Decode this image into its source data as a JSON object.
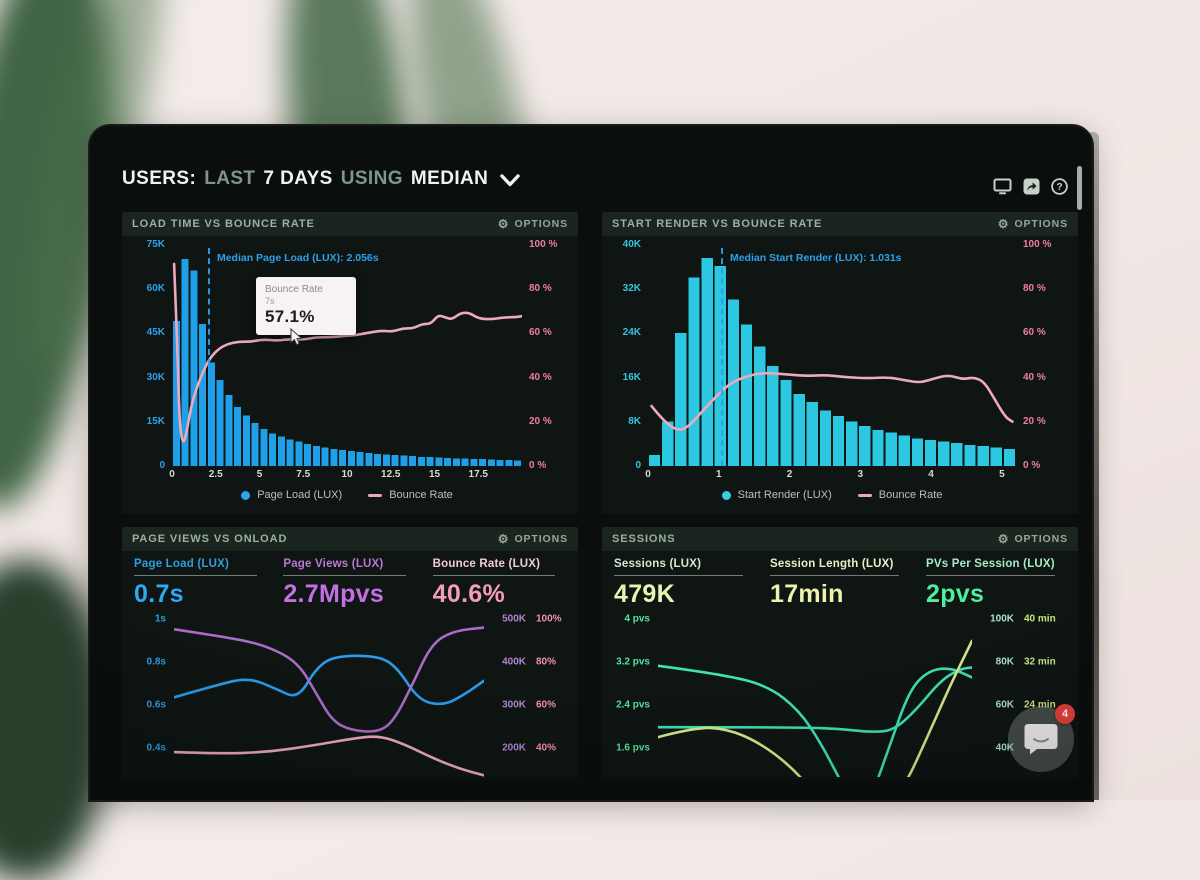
{
  "header": {
    "title_parts": [
      {
        "text": "USERS:",
        "emph": true
      },
      {
        "text": "LAST",
        "emph": false
      },
      {
        "text": "7 DAYS",
        "emph": true
      },
      {
        "text": "USING",
        "emph": false
      },
      {
        "text": "MEDIAN",
        "emph": true
      }
    ],
    "icons": [
      "display-icon",
      "share-icon",
      "help-icon"
    ]
  },
  "labels": {
    "options": "OPTIONS"
  },
  "chat_widget": {
    "badge": "4",
    "icon": "chat-bubble-icon"
  },
  "chart_data": [
    {
      "type": "bar+line",
      "title": "LOAD TIME VS BOUNCE RATE",
      "x_range": [
        0,
        20
      ],
      "x_ticks": [
        {
          "label": "0",
          "v": 0
        },
        {
          "label": "2.5",
          "v": 2.5
        },
        {
          "label": "5",
          "v": 5
        },
        {
          "label": "7.5",
          "v": 7.5
        },
        {
          "label": "10",
          "v": 10
        },
        {
          "label": "12.5",
          "v": 12.5
        },
        {
          "label": "15",
          "v": 15
        },
        {
          "label": "17.5",
          "v": 17.5
        }
      ],
      "y_left": {
        "labels": [
          "75K",
          "60K",
          "45K",
          "30K",
          "15K",
          "0"
        ],
        "max": 75,
        "color": "#2f9fe8"
      },
      "y_right": {
        "labels": [
          "100 %",
          "80 %",
          "60 %",
          "40 %",
          "20 %",
          "0 %"
        ],
        "max": 100,
        "color": "#f27e9b"
      },
      "bars": {
        "name": "Page Load (LUX)",
        "color": "#1e9fe8",
        "values": [
          49,
          70,
          66,
          48,
          35,
          29,
          24,
          20,
          17,
          14.5,
          12.5,
          11,
          10,
          9,
          8.2,
          7.5,
          6.8,
          6.3,
          5.8,
          5.4,
          5,
          4.7,
          4.4,
          4.1,
          3.9,
          3.7,
          3.5,
          3.3,
          3.1,
          3,
          2.8,
          2.7,
          2.6,
          2.5,
          2.4,
          2.3,
          2.2,
          2.1,
          2,
          1.9
        ]
      },
      "line": {
        "name": "Bounce Rate",
        "color": "#efa9bd",
        "points": [
          [
            0.12,
            91
          ],
          [
            0.3,
            55
          ],
          [
            0.42,
            22
          ],
          [
            0.55,
            12
          ],
          [
            0.7,
            10.5
          ],
          [
            0.9,
            18
          ],
          [
            1.1,
            27
          ],
          [
            1.4,
            35
          ],
          [
            1.8,
            43
          ],
          [
            2.2,
            49
          ],
          [
            2.7,
            53
          ],
          [
            3.2,
            55
          ],
          [
            3.8,
            56
          ],
          [
            4.5,
            56
          ],
          [
            5.2,
            57
          ],
          [
            6,
            56.5
          ],
          [
            6.6,
            57
          ],
          [
            7,
            57.1
          ],
          [
            7.6,
            57
          ],
          [
            8.2,
            58
          ],
          [
            9,
            58
          ],
          [
            9.8,
            58.5
          ],
          [
            10.5,
            59
          ],
          [
            11.2,
            60
          ],
          [
            12,
            61
          ],
          [
            12.6,
            60.5
          ],
          [
            13.2,
            62
          ],
          [
            13.8,
            62
          ],
          [
            14.3,
            64
          ],
          [
            14.8,
            64
          ],
          [
            15.2,
            68
          ],
          [
            15.6,
            67
          ],
          [
            16,
            66
          ],
          [
            16.5,
            69
          ],
          [
            17,
            69
          ],
          [
            17.5,
            66.5
          ],
          [
            18.2,
            66
          ],
          [
            19,
            67
          ],
          [
            19.6,
            67
          ],
          [
            20,
            67.5
          ]
        ]
      },
      "median": {
        "label": "Median Page Load (LUX): 2.056s",
        "value": 2.056,
        "color": "#2e9fe8"
      },
      "tooltip": {
        "title": "Bounce Rate",
        "subtitle": "7s",
        "value": "57.1%"
      },
      "legend": [
        {
          "label": "Page Load (LUX)",
          "marker": "dot",
          "color": "#2aa4ec"
        },
        {
          "label": "Bounce Rate",
          "marker": "dash",
          "color": "#f0a6ba"
        }
      ]
    },
    {
      "type": "bar+line",
      "title": "START RENDER VS BOUNCE RATE",
      "x_range": [
        0,
        5.2
      ],
      "x_ticks": [
        {
          "label": "0",
          "v": 0
        },
        {
          "label": "1",
          "v": 1
        },
        {
          "label": "2",
          "v": 2
        },
        {
          "label": "3",
          "v": 3
        },
        {
          "label": "4",
          "v": 4
        },
        {
          "label": "5",
          "v": 5
        }
      ],
      "y_left": {
        "labels": [
          "40K",
          "32K",
          "24K",
          "16K",
          "8K",
          "0"
        ],
        "max": 40,
        "color": "#35c6de"
      },
      "y_right": {
        "labels": [
          "100 %",
          "80 %",
          "60 %",
          "40 %",
          "20 %",
          "0 %"
        ],
        "max": 100,
        "color": "#f27e9b"
      },
      "bars": {
        "name": "Start Render (LUX)",
        "color": "#2cc7e0",
        "values": [
          2,
          8,
          24,
          34,
          37.5,
          36,
          30,
          25.5,
          21.5,
          18,
          15.5,
          13,
          11.5,
          10,
          9,
          8,
          7.2,
          6.5,
          6,
          5.5,
          5,
          4.7,
          4.4,
          4.1,
          3.8,
          3.6,
          3.3,
          3.1
        ]
      },
      "line": {
        "name": "Bounce Rate",
        "color": "#efa9bd",
        "points": [
          [
            0.05,
            27
          ],
          [
            0.2,
            21
          ],
          [
            0.4,
            16
          ],
          [
            0.55,
            17
          ],
          [
            0.75,
            24
          ],
          [
            0.95,
            31
          ],
          [
            1.15,
            37
          ],
          [
            1.35,
            40
          ],
          [
            1.6,
            42
          ],
          [
            1.9,
            41.5
          ],
          [
            2.2,
            40.5
          ],
          [
            2.5,
            41
          ],
          [
            2.8,
            40
          ],
          [
            3.1,
            39.5
          ],
          [
            3.4,
            40
          ],
          [
            3.65,
            38.5
          ],
          [
            3.85,
            37.5
          ],
          [
            4.05,
            39.5
          ],
          [
            4.25,
            41
          ],
          [
            4.45,
            39
          ],
          [
            4.6,
            40
          ],
          [
            4.75,
            38
          ],
          [
            4.9,
            30
          ],
          [
            5.05,
            22
          ],
          [
            5.15,
            20
          ]
        ]
      },
      "median": {
        "label": "Median Start Render (LUX): 1.031s",
        "value": 1.031,
        "color": "#2e9fe8"
      },
      "legend": [
        {
          "label": "Start Render (LUX)",
          "marker": "dot",
          "color": "#38cbe2"
        },
        {
          "label": "Bounce Rate",
          "marker": "dash",
          "color": "#f0a6ba"
        }
      ]
    },
    {
      "type": "multi-line",
      "title": "PAGE VIEWS VS ONLOAD",
      "metrics": [
        {
          "label": "Page Load (LUX)",
          "value": "0.7s",
          "label_color": "#2f9ede",
          "value_color": "#2fa9f2"
        },
        {
          "label": "Page Views (LUX)",
          "value": "2.7Mpvs",
          "label_color": "#b979d4",
          "value_color": "#c470e2"
        },
        {
          "label": "Bounce Rate (LUX)",
          "value": "40.6%",
          "label_color": "#f2ccd8",
          "value_color": "#f59cba"
        }
      ],
      "y_left": {
        "labels": [
          "1s",
          "0.8s",
          "0.6s",
          "0.4s"
        ],
        "color": "#2d9fe2"
      },
      "y_right": {
        "rows": [
          [
            "500K",
            "100%"
          ],
          [
            "400K",
            "80%"
          ],
          [
            "300K",
            "60%"
          ],
          [
            "200K",
            "40%"
          ]
        ],
        "col1_color": "#b286d2",
        "col2_color": "#f28fb0"
      },
      "series": [
        {
          "name": "Page Load (LUX)",
          "color": "#2b9ce8",
          "points_pct": [
            [
              0,
              52
            ],
            [
              0.13,
              45
            ],
            [
              0.24,
              40
            ],
            [
              0.33,
              47
            ],
            [
              0.4,
              53
            ],
            [
              0.46,
              34
            ],
            [
              0.52,
              27
            ],
            [
              0.66,
              27
            ],
            [
              0.72,
              34
            ],
            [
              0.79,
              54
            ],
            [
              0.87,
              57
            ],
            [
              0.94,
              50
            ],
            [
              1,
              42
            ]
          ]
        },
        {
          "name": "Page Views (LUX)",
          "color": "#aa6cc8",
          "points_pct": [
            [
              0,
              11
            ],
            [
              0.18,
              16
            ],
            [
              0.3,
              21
            ],
            [
              0.4,
              31
            ],
            [
              0.46,
              50
            ],
            [
              0.51,
              66
            ],
            [
              0.57,
              72
            ],
            [
              0.66,
              73
            ],
            [
              0.71,
              66
            ],
            [
              0.77,
              44
            ],
            [
              0.83,
              20
            ],
            [
              0.9,
              12
            ],
            [
              1,
              10
            ]
          ]
        },
        {
          "name": "Bounce Rate (LUX)",
          "color": "#e9a9bd",
          "points_pct": [
            [
              0,
              85
            ],
            [
              0.15,
              86
            ],
            [
              0.3,
              85
            ],
            [
              0.45,
              81
            ],
            [
              0.57,
              77
            ],
            [
              0.66,
              75
            ],
            [
              0.74,
              80
            ],
            [
              0.84,
              89
            ],
            [
              0.92,
              95
            ],
            [
              1,
              99
            ]
          ]
        }
      ]
    },
    {
      "type": "multi-line",
      "title": "SESSIONS",
      "metrics": [
        {
          "label": "Sessions (LUX)",
          "value": "479K",
          "label_color": "#d3ead0",
          "value_color": "#e9f2b4"
        },
        {
          "label": "Session Length (LUX)",
          "value": "17min",
          "label_color": "#e9efc4",
          "value_color": "#edf3ac"
        },
        {
          "label": "PVs Per Session (LUX)",
          "value": "2pvs",
          "label_color": "#a4edc6",
          "value_color": "#50eda0"
        }
      ],
      "y_left": {
        "labels": [
          "4 pvs",
          "3.2 pvs",
          "2.4 pvs",
          "1.6 pvs"
        ],
        "color": "#52e49e"
      },
      "y_right": {
        "rows": [
          [
            "100K",
            "40 min"
          ],
          [
            "80K",
            "32 min"
          ],
          [
            "60K",
            "24 min"
          ],
          [
            "40K",
            ""
          ]
        ],
        "col1_color": "#a9e2cb",
        "col2_color": "#cbe780"
      },
      "series": [
        {
          "name": "PVs Per Session (LUX)",
          "color": "#3fe2b6",
          "points_pct": [
            [
              0,
              33
            ],
            [
              0.2,
              38
            ],
            [
              0.35,
              45
            ],
            [
              0.45,
              60
            ],
            [
              0.52,
              80
            ],
            [
              0.58,
              102
            ],
            [
              0.63,
              118
            ],
            [
              0.68,
              112
            ],
            [
              0.74,
              80
            ],
            [
              0.8,
              48
            ],
            [
              0.86,
              36
            ],
            [
              0.93,
              34
            ],
            [
              1,
              40
            ]
          ]
        },
        {
          "name": "Sessions (LUX)",
          "color": "#3fe2b6",
          "points_pct": [
            [
              0,
              70
            ],
            [
              0.45,
              70
            ],
            [
              0.58,
              71
            ],
            [
              0.68,
              73
            ],
            [
              0.75,
              72
            ],
            [
              0.82,
              60
            ],
            [
              0.9,
              42
            ],
            [
              0.96,
              35
            ],
            [
              1,
              34
            ]
          ]
        },
        {
          "name": "Session Length (LUX)",
          "color": "#d9e88c",
          "points_pct": [
            [
              0,
              76
            ],
            [
              0.12,
              70
            ],
            [
              0.22,
              71
            ],
            [
              0.32,
              79
            ],
            [
              0.42,
              93
            ],
            [
              0.5,
              110
            ],
            [
              0.58,
              125
            ],
            [
              0.68,
              128
            ],
            [
              0.78,
              108
            ],
            [
              0.86,
              75
            ],
            [
              0.93,
              45
            ],
            [
              1,
              18
            ]
          ]
        }
      ]
    }
  ]
}
